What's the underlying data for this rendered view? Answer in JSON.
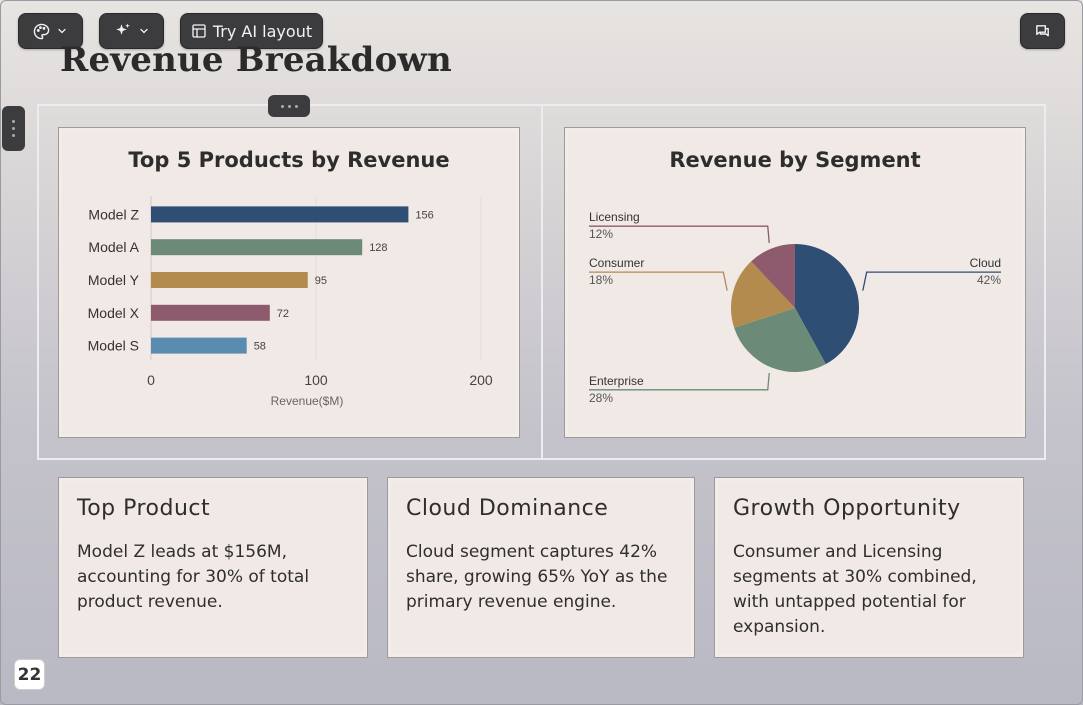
{
  "toolbar": {
    "theme_icon": "palette-icon",
    "ai_icon": "sparkles-icon",
    "ai_layout_label": "Try AI layout",
    "comments_icon": "chat-icon"
  },
  "slide": {
    "title": "Revenue Breakdown",
    "page_number": "22"
  },
  "charts": {
    "bar": {
      "title": "Top 5 Products by Revenue"
    },
    "pie": {
      "title": "Revenue by Segment"
    }
  },
  "chart_data": [
    {
      "type": "bar",
      "orientation": "horizontal",
      "title": "Top 5 Products by Revenue",
      "categories": [
        "Model Z",
        "Model A",
        "Model Y",
        "Model X",
        "Model S"
      ],
      "values": [
        156,
        128,
        95,
        72,
        58
      ],
      "value_labels": [
        "156",
        "128",
        "95",
        "72",
        "58"
      ],
      "colors": [
        "#2e4e73",
        "#6b8b78",
        "#b38b4e",
        "#8e5a6d",
        "#5a8bb0"
      ],
      "xlabel": "Revenue($M)",
      "ylabel": "",
      "xlim": [
        0,
        200
      ],
      "xticks": [
        0,
        100,
        200
      ],
      "xtick_labels": [
        "0",
        "100",
        "200"
      ],
      "grid": true
    },
    {
      "type": "pie",
      "title": "Revenue by Segment",
      "slices": [
        {
          "label": "Cloud",
          "value": 42,
          "pct_label": "42%",
          "color": "#2e4e73"
        },
        {
          "label": "Enterprise",
          "value": 28,
          "pct_label": "28%",
          "color": "#6b8b78"
        },
        {
          "label": "Consumer",
          "value": 18,
          "pct_label": "18%",
          "color": "#b38b4e"
        },
        {
          "label": "Licensing",
          "value": 12,
          "pct_label": "12%",
          "color": "#8e5a6d"
        }
      ]
    }
  ],
  "insights": [
    {
      "title": "Top Product",
      "body": "Model Z leads at $156M, accounting for 30% of total product revenue."
    },
    {
      "title": "Cloud Dominance",
      "body": "Cloud segment captures 42% share, growing 65% YoY as the primary revenue engine."
    },
    {
      "title": "Growth Opportunity",
      "body": "Consumer and Licensing segments at 30% combined, with untapped potential for expansion."
    }
  ]
}
